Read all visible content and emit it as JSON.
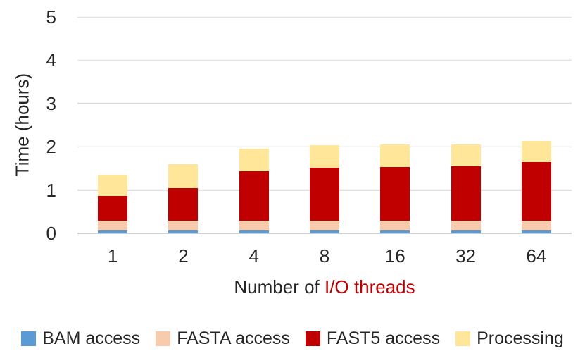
{
  "chart_data": {
    "type": "bar",
    "stacked": true,
    "title": "",
    "categories": [
      "1",
      "2",
      "4",
      "8",
      "16",
      "32",
      "64"
    ],
    "series": [
      {
        "name": "BAM access",
        "color": "#5B9BD5",
        "values": [
          0.06,
          0.06,
          0.06,
          0.06,
          0.06,
          0.06,
          0.06
        ]
      },
      {
        "name": "FASTA access",
        "color": "#F8CBAD",
        "values": [
          0.23,
          0.23,
          0.23,
          0.23,
          0.23,
          0.23,
          0.23
        ]
      },
      {
        "name": "FAST5 access",
        "color": "#C00000",
        "values": [
          0.57,
          0.76,
          1.14,
          1.22,
          1.24,
          1.26,
          1.35
        ]
      },
      {
        "name": "Processing",
        "color": "#FFE699",
        "values": [
          0.5,
          0.55,
          0.52,
          0.52,
          0.52,
          0.51,
          0.49
        ]
      }
    ],
    "stack_totals": [
      1.36,
      1.6,
      1.95,
      2.03,
      2.05,
      2.06,
      2.13
    ],
    "xlabel_prefix": "Number of ",
    "xlabel_highlight": "I/O threads",
    "xlabel_highlight_color": "#C00000",
    "ylabel": "Time (hours)",
    "ylim": [
      0,
      5
    ],
    "yticks": [
      "0",
      "1",
      "2",
      "3",
      "4",
      "5"
    ],
    "grid": true,
    "legend_position": "bottom"
  },
  "colors": {
    "background": "#FFFFFF",
    "axis_text": "#262626",
    "gridline": "#DADADA"
  }
}
